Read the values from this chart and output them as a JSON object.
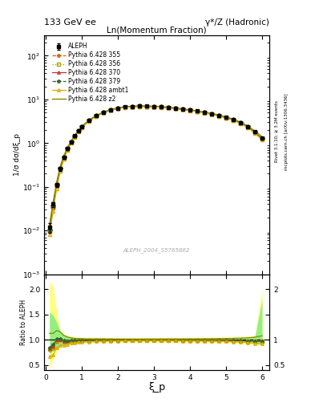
{
  "title_left": "133 GeV ee",
  "title_right": "γ*/Z (Hadronic)",
  "xlabel": "ξ_p",
  "ylabel_main": "1/σ dσ/dξ_p",
  "ylabel_ratio": "Ratio to ALEPH",
  "subplot_title": "Ln(Momentum Fraction)",
  "watermark": "ALEPH_2004_S5765862",
  "right_label_top": "Rivet 3.1.10; ≥ 3.2M events",
  "right_label_bot": "mcplots.cern.ch [arXiv:1306.3436]",
  "xi": [
    0.1,
    0.2,
    0.3,
    0.4,
    0.5,
    0.6,
    0.7,
    0.8,
    0.9,
    1.0,
    1.2,
    1.4,
    1.6,
    1.8,
    2.0,
    2.2,
    2.4,
    2.6,
    2.8,
    3.0,
    3.2,
    3.4,
    3.6,
    3.8,
    4.0,
    4.2,
    4.4,
    4.6,
    4.8,
    5.0,
    5.2,
    5.4,
    5.6,
    5.8,
    6.0
  ],
  "aleph_y": [
    0.012,
    0.04,
    0.11,
    0.26,
    0.48,
    0.76,
    1.08,
    1.48,
    1.92,
    2.4,
    3.35,
    4.25,
    5.1,
    5.8,
    6.35,
    6.75,
    6.95,
    7.05,
    7.0,
    6.9,
    6.75,
    6.55,
    6.3,
    6.0,
    5.7,
    5.4,
    5.05,
    4.7,
    4.3,
    3.9,
    3.45,
    2.95,
    2.4,
    1.8,
    1.3
  ],
  "aleph_yerr": [
    0.003,
    0.005,
    0.012,
    0.025,
    0.04,
    0.055,
    0.07,
    0.09,
    0.1,
    0.12,
    0.15,
    0.18,
    0.2,
    0.22,
    0.24,
    0.25,
    0.26,
    0.26,
    0.26,
    0.25,
    0.24,
    0.23,
    0.22,
    0.21,
    0.2,
    0.19,
    0.18,
    0.17,
    0.16,
    0.15,
    0.13,
    0.11,
    0.09,
    0.07,
    0.06
  ],
  "pythia_355_y": [
    0.0095,
    0.033,
    0.105,
    0.255,
    0.46,
    0.73,
    1.05,
    1.44,
    1.88,
    2.35,
    3.28,
    4.18,
    5.02,
    5.72,
    6.27,
    6.67,
    6.87,
    6.97,
    6.93,
    6.83,
    6.68,
    6.48,
    6.23,
    5.93,
    5.63,
    5.33,
    4.98,
    4.63,
    4.23,
    3.83,
    3.38,
    2.88,
    2.33,
    1.73,
    1.25
  ],
  "pythia_356_y": [
    0.0098,
    0.034,
    0.108,
    0.26,
    0.465,
    0.735,
    1.055,
    1.445,
    1.885,
    2.355,
    3.285,
    4.185,
    5.025,
    5.725,
    6.275,
    6.675,
    6.875,
    6.975,
    6.935,
    6.835,
    6.685,
    6.485,
    6.235,
    5.935,
    5.635,
    5.335,
    4.985,
    4.635,
    4.235,
    3.835,
    3.385,
    2.885,
    2.335,
    1.735,
    1.255
  ],
  "pythia_370_y": [
    0.01,
    0.035,
    0.11,
    0.262,
    0.468,
    0.74,
    1.06,
    1.45,
    1.89,
    2.36,
    3.29,
    4.19,
    5.03,
    5.73,
    6.28,
    6.68,
    6.88,
    6.98,
    6.94,
    6.84,
    6.69,
    6.49,
    6.24,
    5.94,
    5.64,
    5.34,
    4.99,
    4.64,
    4.24,
    3.84,
    3.39,
    2.89,
    2.34,
    1.74,
    1.26
  ],
  "pythia_379_y": [
    0.0102,
    0.036,
    0.112,
    0.265,
    0.47,
    0.742,
    1.062,
    1.452,
    1.892,
    2.362,
    3.292,
    4.192,
    5.032,
    5.732,
    6.282,
    6.682,
    6.882,
    6.982,
    6.942,
    6.842,
    6.692,
    6.492,
    6.242,
    5.942,
    5.642,
    5.342,
    4.992,
    4.642,
    4.242,
    3.842,
    3.392,
    2.892,
    2.342,
    1.742,
    1.262
  ],
  "pythia_ambt1_y": [
    0.008,
    0.028,
    0.092,
    0.232,
    0.43,
    0.695,
    1.01,
    1.39,
    1.83,
    2.29,
    3.22,
    4.12,
    4.96,
    5.66,
    6.21,
    6.61,
    6.81,
    6.91,
    6.87,
    6.77,
    6.62,
    6.42,
    6.17,
    5.87,
    5.57,
    5.27,
    4.92,
    4.57,
    4.17,
    3.77,
    3.32,
    2.82,
    2.27,
    1.67,
    1.2
  ],
  "pythia_z2_y": [
    0.0135,
    0.045,
    0.13,
    0.3,
    0.52,
    0.8,
    1.12,
    1.52,
    1.96,
    2.45,
    3.4,
    4.32,
    5.18,
    5.88,
    6.43,
    6.83,
    7.03,
    7.13,
    7.09,
    6.99,
    6.84,
    6.64,
    6.39,
    6.09,
    5.79,
    5.49,
    5.14,
    4.79,
    4.39,
    3.99,
    3.54,
    3.04,
    2.49,
    1.89,
    1.4
  ],
  "colors": {
    "aleph": "#000000",
    "p355": "#dd6600",
    "p356": "#aaaa00",
    "p370": "#cc3333",
    "p379": "#336633",
    "pambt1": "#ddaa00",
    "pz2": "#888800"
  },
  "ylim_main": [
    0.001,
    300
  ],
  "ylim_ratio": [
    0.4,
    2.3
  ],
  "xlim": [
    -0.05,
    6.2
  ]
}
